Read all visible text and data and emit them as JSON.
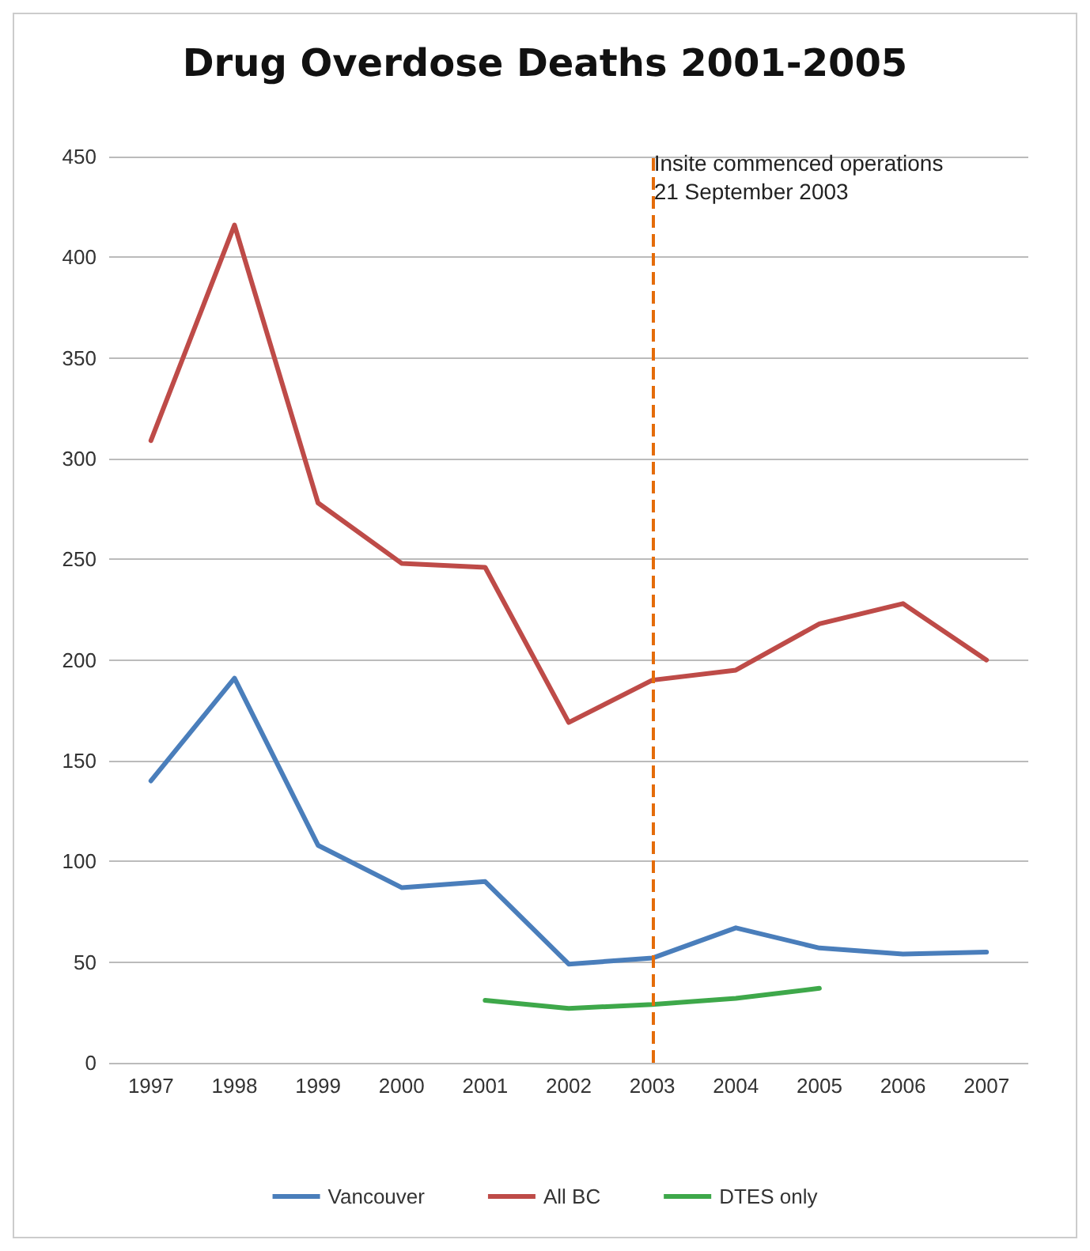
{
  "chart_data": {
    "type": "line",
    "title": "Drug Overdose Deaths 2001-2005",
    "categories": [
      "1997",
      "1998",
      "1999",
      "2000",
      "2001",
      "2002",
      "2003",
      "2004",
      "2005",
      "2006",
      "2007"
    ],
    "series": [
      {
        "name": "Vancouver",
        "color": "#4a7ebb",
        "values": [
          140,
          191,
          108,
          87,
          90,
          49,
          52,
          67,
          57,
          54,
          55
        ]
      },
      {
        "name": "All BC",
        "color": "#be4b48",
        "values": [
          309,
          416,
          278,
          248,
          246,
          169,
          190,
          195,
          218,
          228,
          200
        ]
      },
      {
        "name": "DTES only",
        "color": "#3ea84a",
        "values": [
          null,
          null,
          null,
          null,
          31,
          27,
          29,
          32,
          37,
          null,
          null
        ]
      }
    ],
    "ylim": [
      0,
      450
    ],
    "yticks": [
      0,
      50,
      100,
      150,
      200,
      250,
      300,
      350,
      400,
      450
    ],
    "grid": "y",
    "legend": "bottom",
    "marker": "none",
    "line_style": "solid",
    "ref_lines": [
      {
        "axis": "x",
        "value": "2003",
        "label": "Insite commenced operations\n21 September 2003",
        "color": "#e46c0a",
        "line_style": "dashed"
      }
    ]
  }
}
